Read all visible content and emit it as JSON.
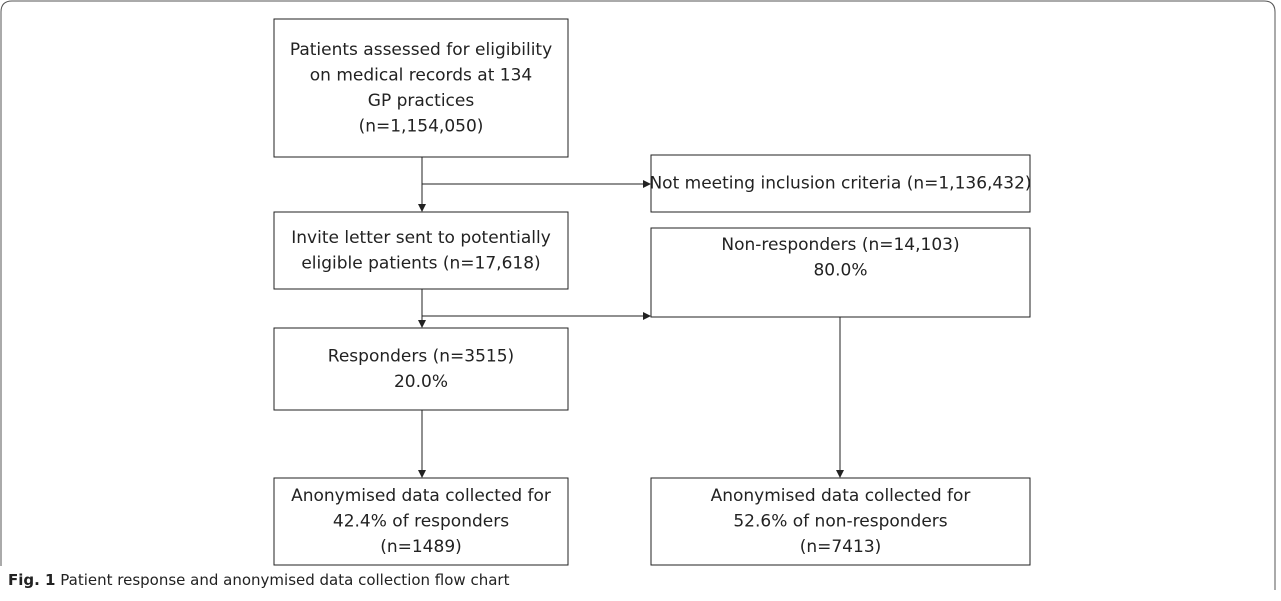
{
  "nodes": [
    {
      "lines": [
        "Patients assessed for eligibility",
        "on medical records at 134",
        "GP practices",
        "(n=1,154,050)"
      ]
    },
    {
      "lines": [
        "Not meeting inclusion criteria (n=1,136,432)"
      ]
    },
    {
      "lines": [
        "Invite letter sent to potentially",
        "eligible patients (n=17,618)"
      ]
    },
    {
      "lines": [
        "Non-responders (n=14,103)",
        "80.0%"
      ]
    },
    {
      "lines": [
        "Responders (n=3515)",
        "20.0%"
      ]
    },
    {
      "lines": [
        "Anonymised data collected for",
        "42.4% of responders",
        "(n=1489)"
      ]
    },
    {
      "lines": [
        "Anonymised data collected for",
        "52.6% of non-responders",
        "(n=7413)"
      ]
    }
  ],
  "caption": {
    "label": "Fig. 1",
    "text": "Patient response and anonymised data collection flow chart"
  }
}
